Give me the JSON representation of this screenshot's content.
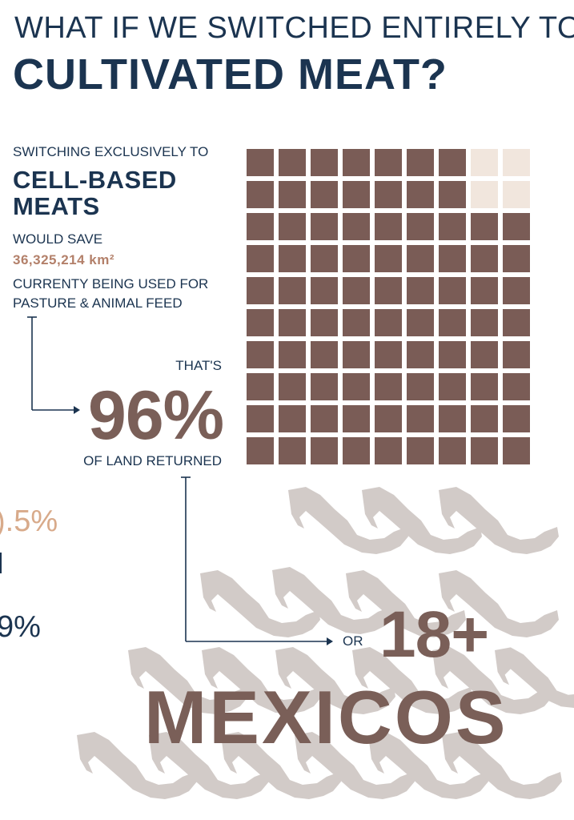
{
  "headline": {
    "line1": "WHAT IF WE SWITCHED ENTIRELY TO",
    "line2": "CULTIVATED MEAT?"
  },
  "left_panel": {
    "intro": "SWITCHING EXCLUSIVELY TO",
    "highlight_line1": "CELL-BASED",
    "highlight_line2": "MEATS",
    "would_save": "WOULD SAVE",
    "area_value": "36,325,214 km²",
    "currently_line1": "CURRENTY BEING USED FOR",
    "currently_line2": "PASTURE & ANIMAL FEED"
  },
  "result": {
    "thats": "THAT'S",
    "percent": "96%",
    "land_returned": "OF LAND RETURNED"
  },
  "comparison": {
    "or": "OR",
    "count": "18+",
    "unit": "MEXICOS"
  },
  "cut_off": {
    "text1": ").5%",
    "text2": "9%"
  },
  "waffle": {
    "columns": 9,
    "total_cells": 90,
    "unfilled_cells": 4,
    "filled_color": "#7a5c56",
    "unfilled_color": "#f1e6dd"
  },
  "colors": {
    "navy": "#1b3450",
    "brown": "#7a5f58",
    "tan": "#b3806a",
    "map_gray": "#d2cbc8"
  },
  "maps": {
    "icon": "mexico-map-icon"
  }
}
